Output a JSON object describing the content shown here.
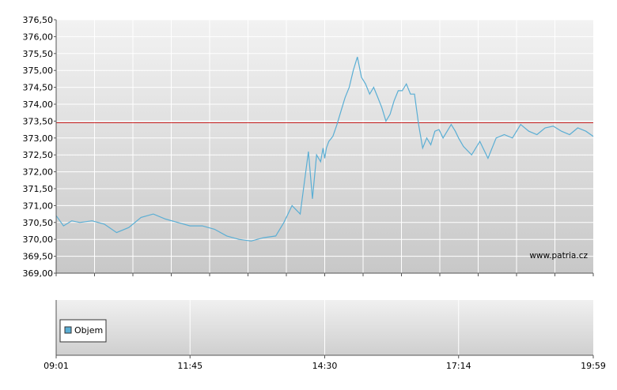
{
  "chart_data": [
    {
      "type": "line",
      "title": "",
      "xlabel": "",
      "ylabel": "",
      "ylim": [
        369.0,
        376.5
      ],
      "y_ticks": [
        "369,00",
        "369,50",
        "370,00",
        "370,50",
        "371,00",
        "371,50",
        "372,00",
        "372,50",
        "373,00",
        "373,50",
        "374,00",
        "374,50",
        "375,00",
        "375,50",
        "376,00",
        "376,50"
      ],
      "x_ticks": [
        "09:01",
        "11:45",
        "14:30",
        "17:14",
        "19:59"
      ],
      "grid": true,
      "line_color": "#5aaed4",
      "reference_line": {
        "value": 373.45,
        "color": "#cc2222"
      },
      "watermark": "www.patria.cz",
      "series": [
        {
          "x": [
            "09:01",
            "09:10",
            "09:20",
            "09:30",
            "09:45",
            "10:00",
            "10:15",
            "10:30",
            "10:45",
            "11:00",
            "11:15",
            "11:30",
            "11:45",
            "12:00",
            "12:15",
            "12:30",
            "12:45",
            "13:00",
            "13:15",
            "13:30",
            "13:40",
            "13:50",
            "14:00",
            "14:10",
            "14:15",
            "14:20",
            "14:25",
            "14:28",
            "14:30",
            "14:32",
            "14:35",
            "14:40",
            "14:45",
            "14:50",
            "14:55",
            "15:00",
            "15:05",
            "15:10",
            "15:15",
            "15:20",
            "15:25",
            "15:30",
            "15:35",
            "15:40",
            "15:45",
            "15:50",
            "15:55",
            "16:00",
            "16:05",
            "16:10",
            "16:15",
            "16:20",
            "16:25",
            "16:30",
            "16:35",
            "16:40",
            "16:45",
            "16:50",
            "16:55",
            "17:00",
            "17:05",
            "17:10",
            "17:14",
            "17:20",
            "17:30",
            "17:40",
            "17:50",
            "18:00",
            "18:10",
            "18:20",
            "18:30",
            "18:40",
            "18:50",
            "19:00",
            "19:10",
            "19:20",
            "19:30",
            "19:40",
            "19:50",
            "19:59"
          ],
          "values": [
            370.7,
            370.4,
            370.55,
            370.5,
            370.55,
            370.45,
            370.2,
            370.35,
            370.65,
            370.75,
            370.6,
            370.5,
            370.4,
            370.4,
            370.3,
            370.1,
            370.0,
            369.95,
            370.05,
            370.1,
            370.5,
            371.0,
            370.75,
            372.6,
            371.2,
            372.5,
            372.3,
            372.7,
            372.4,
            372.7,
            372.9,
            373.05,
            373.4,
            373.8,
            374.2,
            374.5,
            375.0,
            375.4,
            374.8,
            374.6,
            374.3,
            374.5,
            374.2,
            373.9,
            373.5,
            373.7,
            374.1,
            374.4,
            374.4,
            374.6,
            374.3,
            374.3,
            373.4,
            372.7,
            373.0,
            372.8,
            373.2,
            373.25,
            373.0,
            373.2,
            373.4,
            373.2,
            373.0,
            372.75,
            372.5,
            372.9,
            372.4,
            373.0,
            373.1,
            373.0,
            373.4,
            373.2,
            373.1,
            373.3,
            373.35,
            373.2,
            373.1,
            373.3,
            373.2,
            373.05
          ]
        }
      ]
    },
    {
      "type": "bar",
      "title": "",
      "xlabel": "",
      "ylabel": "",
      "legend": {
        "placement": "left",
        "entries": [
          {
            "name": "Objem",
            "color": "#5aaed4"
          }
        ]
      },
      "grid": true,
      "x_ticks": [
        "09:01",
        "11:45",
        "14:30",
        "17:14",
        "19:59"
      ],
      "series": []
    }
  ]
}
